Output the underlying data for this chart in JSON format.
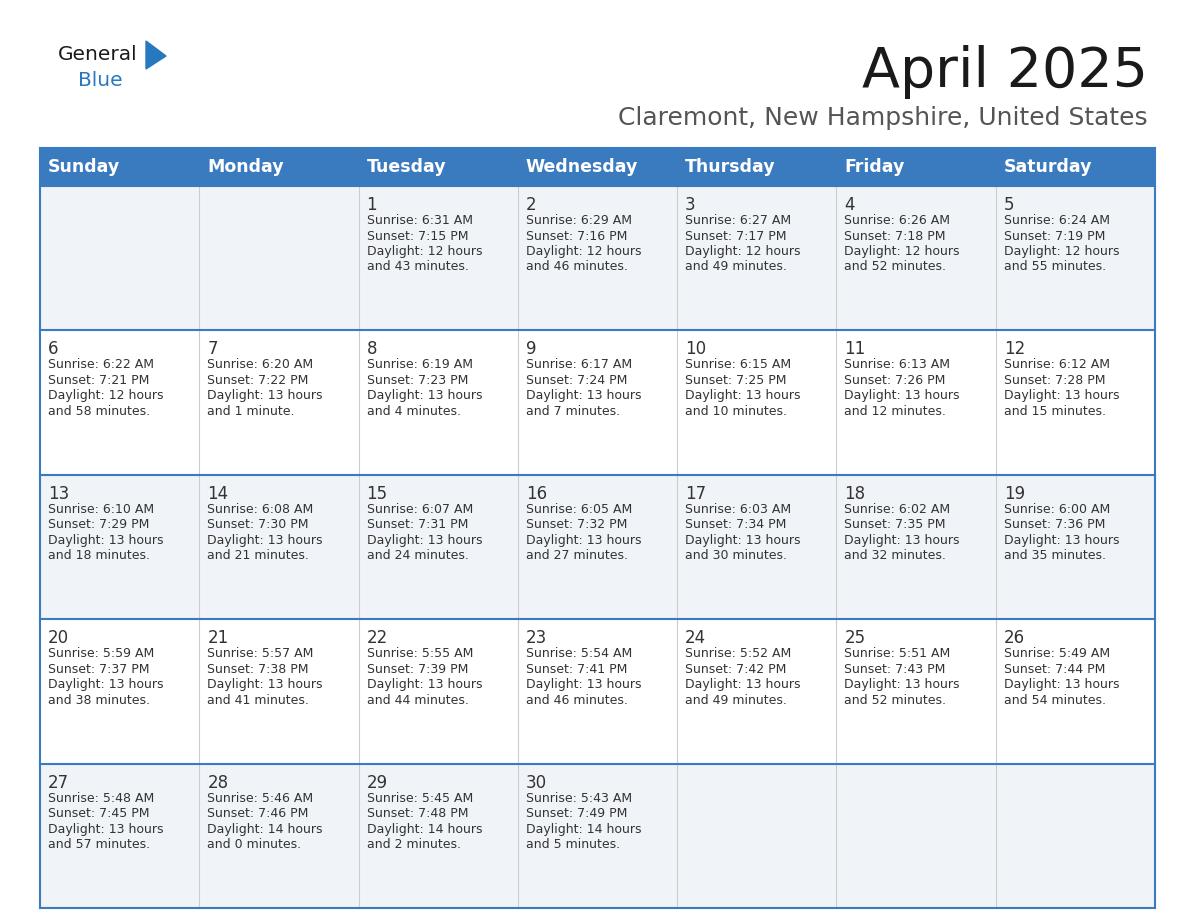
{
  "title": "April 2025",
  "subtitle": "Claremont, New Hampshire, United States",
  "days_of_week": [
    "Sunday",
    "Monday",
    "Tuesday",
    "Wednesday",
    "Thursday",
    "Friday",
    "Saturday"
  ],
  "header_bg": "#3a7abf",
  "header_text": "#ffffff",
  "row_bg_light": "#f0f4f8",
  "row_bg_white": "#ffffff",
  "divider_color": "#3a7abf",
  "text_color": "#333333",
  "calendar": [
    [
      {
        "day": "",
        "sunrise": "",
        "sunset": "",
        "daylight_h": "",
        "daylight_m": ""
      },
      {
        "day": "",
        "sunrise": "",
        "sunset": "",
        "daylight_h": "",
        "daylight_m": ""
      },
      {
        "day": "1",
        "sunrise": "6:31 AM",
        "sunset": "7:15 PM",
        "daylight_h": "12 hours",
        "daylight_m": "and 43 minutes."
      },
      {
        "day": "2",
        "sunrise": "6:29 AM",
        "sunset": "7:16 PM",
        "daylight_h": "12 hours",
        "daylight_m": "and 46 minutes."
      },
      {
        "day": "3",
        "sunrise": "6:27 AM",
        "sunset": "7:17 PM",
        "daylight_h": "12 hours",
        "daylight_m": "and 49 minutes."
      },
      {
        "day": "4",
        "sunrise": "6:26 AM",
        "sunset": "7:18 PM",
        "daylight_h": "12 hours",
        "daylight_m": "and 52 minutes."
      },
      {
        "day": "5",
        "sunrise": "6:24 AM",
        "sunset": "7:19 PM",
        "daylight_h": "12 hours",
        "daylight_m": "and 55 minutes."
      }
    ],
    [
      {
        "day": "6",
        "sunrise": "6:22 AM",
        "sunset": "7:21 PM",
        "daylight_h": "12 hours",
        "daylight_m": "and 58 minutes."
      },
      {
        "day": "7",
        "sunrise": "6:20 AM",
        "sunset": "7:22 PM",
        "daylight_h": "13 hours",
        "daylight_m": "and 1 minute."
      },
      {
        "day": "8",
        "sunrise": "6:19 AM",
        "sunset": "7:23 PM",
        "daylight_h": "13 hours",
        "daylight_m": "and 4 minutes."
      },
      {
        "day": "9",
        "sunrise": "6:17 AM",
        "sunset": "7:24 PM",
        "daylight_h": "13 hours",
        "daylight_m": "and 7 minutes."
      },
      {
        "day": "10",
        "sunrise": "6:15 AM",
        "sunset": "7:25 PM",
        "daylight_h": "13 hours",
        "daylight_m": "and 10 minutes."
      },
      {
        "day": "11",
        "sunrise": "6:13 AM",
        "sunset": "7:26 PM",
        "daylight_h": "13 hours",
        "daylight_m": "and 12 minutes."
      },
      {
        "day": "12",
        "sunrise": "6:12 AM",
        "sunset": "7:28 PM",
        "daylight_h": "13 hours",
        "daylight_m": "and 15 minutes."
      }
    ],
    [
      {
        "day": "13",
        "sunrise": "6:10 AM",
        "sunset": "7:29 PM",
        "daylight_h": "13 hours",
        "daylight_m": "and 18 minutes."
      },
      {
        "day": "14",
        "sunrise": "6:08 AM",
        "sunset": "7:30 PM",
        "daylight_h": "13 hours",
        "daylight_m": "and 21 minutes."
      },
      {
        "day": "15",
        "sunrise": "6:07 AM",
        "sunset": "7:31 PM",
        "daylight_h": "13 hours",
        "daylight_m": "and 24 minutes."
      },
      {
        "day": "16",
        "sunrise": "6:05 AM",
        "sunset": "7:32 PM",
        "daylight_h": "13 hours",
        "daylight_m": "and 27 minutes."
      },
      {
        "day": "17",
        "sunrise": "6:03 AM",
        "sunset": "7:34 PM",
        "daylight_h": "13 hours",
        "daylight_m": "and 30 minutes."
      },
      {
        "day": "18",
        "sunrise": "6:02 AM",
        "sunset": "7:35 PM",
        "daylight_h": "13 hours",
        "daylight_m": "and 32 minutes."
      },
      {
        "day": "19",
        "sunrise": "6:00 AM",
        "sunset": "7:36 PM",
        "daylight_h": "13 hours",
        "daylight_m": "and 35 minutes."
      }
    ],
    [
      {
        "day": "20",
        "sunrise": "5:59 AM",
        "sunset": "7:37 PM",
        "daylight_h": "13 hours",
        "daylight_m": "and 38 minutes."
      },
      {
        "day": "21",
        "sunrise": "5:57 AM",
        "sunset": "7:38 PM",
        "daylight_h": "13 hours",
        "daylight_m": "and 41 minutes."
      },
      {
        "day": "22",
        "sunrise": "5:55 AM",
        "sunset": "7:39 PM",
        "daylight_h": "13 hours",
        "daylight_m": "and 44 minutes."
      },
      {
        "day": "23",
        "sunrise": "5:54 AM",
        "sunset": "7:41 PM",
        "daylight_h": "13 hours",
        "daylight_m": "and 46 minutes."
      },
      {
        "day": "24",
        "sunrise": "5:52 AM",
        "sunset": "7:42 PM",
        "daylight_h": "13 hours",
        "daylight_m": "and 49 minutes."
      },
      {
        "day": "25",
        "sunrise": "5:51 AM",
        "sunset": "7:43 PM",
        "daylight_h": "13 hours",
        "daylight_m": "and 52 minutes."
      },
      {
        "day": "26",
        "sunrise": "5:49 AM",
        "sunset": "7:44 PM",
        "daylight_h": "13 hours",
        "daylight_m": "and 54 minutes."
      }
    ],
    [
      {
        "day": "27",
        "sunrise": "5:48 AM",
        "sunset": "7:45 PM",
        "daylight_h": "13 hours",
        "daylight_m": "and 57 minutes."
      },
      {
        "day": "28",
        "sunrise": "5:46 AM",
        "sunset": "7:46 PM",
        "daylight_h": "14 hours",
        "daylight_m": "and 0 minutes."
      },
      {
        "day": "29",
        "sunrise": "5:45 AM",
        "sunset": "7:48 PM",
        "daylight_h": "14 hours",
        "daylight_m": "and 2 minutes."
      },
      {
        "day": "30",
        "sunrise": "5:43 AM",
        "sunset": "7:49 PM",
        "daylight_h": "14 hours",
        "daylight_m": "and 5 minutes."
      },
      {
        "day": "",
        "sunrise": "",
        "sunset": "",
        "daylight_h": "",
        "daylight_m": ""
      },
      {
        "day": "",
        "sunrise": "",
        "sunset": "",
        "daylight_h": "",
        "daylight_m": ""
      },
      {
        "day": "",
        "sunrise": "",
        "sunset": "",
        "daylight_h": "",
        "daylight_m": ""
      }
    ]
  ]
}
